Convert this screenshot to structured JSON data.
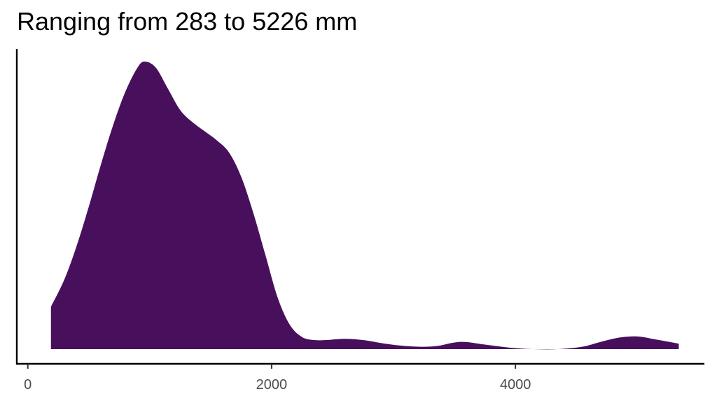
{
  "chart_data": {
    "type": "area",
    "title": "Ranging from 283 to 5226 mm",
    "xlabel": "",
    "ylabel": "",
    "xlim": [
      -90,
      5550
    ],
    "ylim": [
      0,
      1.0
    ],
    "x_ticks": [
      0,
      2000,
      4000
    ],
    "x_tick_labels": [
      "0",
      "2000",
      "4000"
    ],
    "y_ticks_shown": false,
    "grid": false,
    "legend": "none",
    "fill_color": "#48105c",
    "series": [
      {
        "x": [
          190,
          300,
          400,
          500,
          600,
          700,
          800,
          900,
          960,
          1050,
          1150,
          1250,
          1350,
          1450,
          1550,
          1650,
          1750,
          1850,
          1950,
          2050,
          2150,
          2250,
          2350,
          2450,
          2600,
          2750,
          2900,
          3050,
          3200,
          3350,
          3550,
          3750,
          3950,
          4150,
          4350,
          4550,
          4700,
          4850,
          5000,
          5150,
          5340
        ],
        "y": [
          0.14,
          0.23,
          0.34,
          0.47,
          0.61,
          0.74,
          0.85,
          0.93,
          0.95,
          0.93,
          0.86,
          0.79,
          0.75,
          0.72,
          0.69,
          0.65,
          0.57,
          0.45,
          0.31,
          0.17,
          0.08,
          0.04,
          0.03,
          0.03,
          0.034,
          0.03,
          0.02,
          0.012,
          0.008,
          0.01,
          0.024,
          0.015,
          0.005,
          0.0,
          0.0,
          0.008,
          0.024,
          0.038,
          0.042,
          0.032,
          0.018
        ]
      }
    ]
  }
}
